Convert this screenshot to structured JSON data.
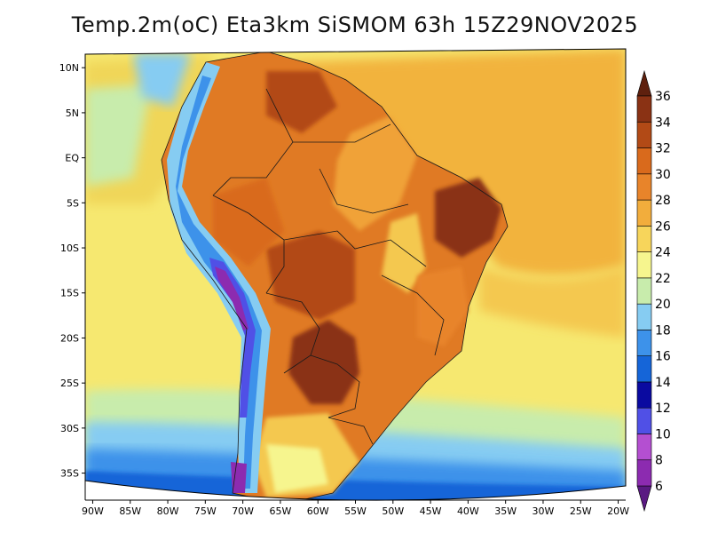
{
  "title": "Temp.2m(oC) Eta3km SiSMOM 63h 15Z29NOV2025",
  "map": {
    "variable": "2 m temperature",
    "units": "oC",
    "region": "South America",
    "lon_labels": [
      "90W",
      "85W",
      "80W",
      "75W",
      "70W",
      "65W",
      "60W",
      "55W",
      "50W",
      "45W",
      "40W",
      "35W",
      "30W",
      "25W",
      "20W"
    ],
    "lon_values": [
      -90,
      -85,
      -80,
      -75,
      -70,
      -65,
      -60,
      -55,
      -50,
      -45,
      -40,
      -35,
      -30,
      -25,
      -20
    ],
    "lat_labels": [
      "10N",
      "5N",
      "EQ",
      "5S",
      "10S",
      "15S",
      "20S",
      "25S",
      "30S",
      "35S"
    ],
    "lat_values": [
      10,
      5,
      0,
      -5,
      -10,
      -15,
      -20,
      -25,
      -30,
      -35
    ],
    "lon_range": [
      -91,
      -19
    ],
    "lat_range": [
      -38,
      11.5
    ]
  },
  "colorbar": {
    "levels": [
      "6",
      "8",
      "10",
      "12",
      "14",
      "16",
      "18",
      "20",
      "22",
      "24",
      "26",
      "28",
      "30",
      "32",
      "34",
      "36"
    ],
    "colors": [
      "#5a1a82",
      "#8c2bb0",
      "#b44fd1",
      "#5050e6",
      "#0a0aa0",
      "#1565d8",
      "#3d92ea",
      "#86ccf2",
      "#c8ecac",
      "#f6f58e",
      "#f7d55b",
      "#f2ad3c",
      "#e8842a",
      "#d96a1c",
      "#b24a16",
      "#8a3214",
      "#5e200e"
    ]
  }
}
